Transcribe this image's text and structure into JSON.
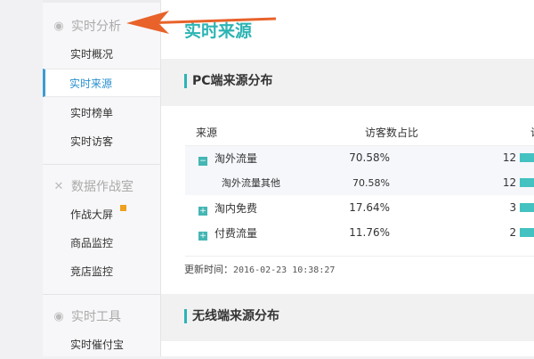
{
  "sidebar": {
    "groups": [
      {
        "label": "实时分析",
        "icon": "eye-icon",
        "items": [
          "实时概况",
          "实时来源",
          "实时榜单",
          "实时访客"
        ]
      },
      {
        "label": "数据作战室",
        "icon": "cross-swords-icon",
        "items": [
          "作战大屏",
          "商品监控",
          "竞店监控"
        ]
      },
      {
        "label": "实时工具",
        "icon": "eye-icon",
        "items": [
          "实时催付宝"
        ]
      }
    ],
    "active": "实时来源"
  },
  "main": {
    "title": "实时来源",
    "pc_section": "PC端来源分布",
    "wireless_section": "无线端来源分布",
    "table": {
      "headers": [
        "来源",
        "访客数占比",
        "访"
      ],
      "rows": [
        {
          "name": "淘外流量",
          "pct": "70.58%",
          "count": "12",
          "toggle": "minus"
        },
        {
          "name": "淘外流量其他",
          "pct": "70.58%",
          "count": "12"
        },
        {
          "name": "淘内免费",
          "pct": "17.64%",
          "count": "3",
          "toggle": "plus"
        },
        {
          "name": "付费流量",
          "pct": "11.76%",
          "count": "2",
          "toggle": "plus"
        }
      ]
    },
    "update_label": "更新时间：",
    "update_time": "2016-02-23 10:38:27"
  },
  "colors": {
    "accent": "#2db4b4",
    "active_nav": "#3d9bd3",
    "arrow": "#e8622a"
  }
}
